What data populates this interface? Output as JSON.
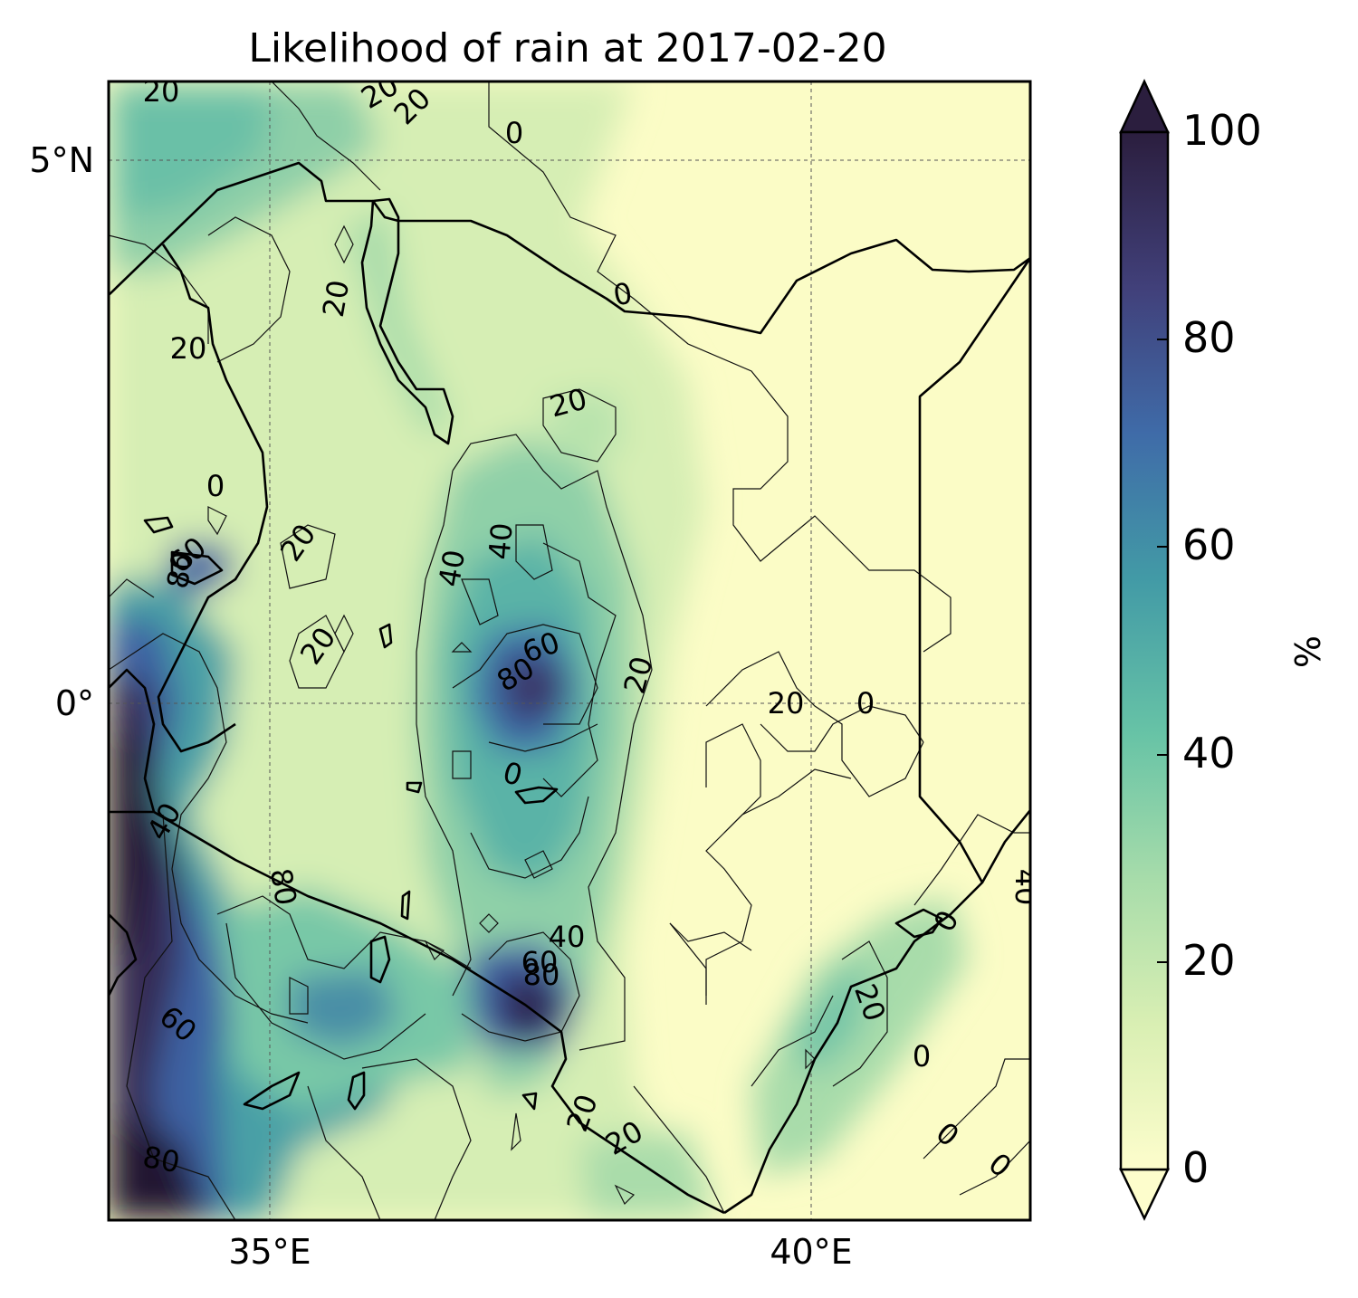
{
  "map": {
    "title": "Likelihood of rain at 2017-02-20",
    "longitude_ticks": [
      "35°E",
      "40°E"
    ],
    "latitude_ticks": [
      "5°N",
      "0°"
    ],
    "gridlines": true
  },
  "colorbar": {
    "label": "%",
    "ticks": [
      "0",
      "20",
      "40",
      "60",
      "80",
      "100"
    ],
    "range": [
      0,
      100
    ],
    "extend": "both",
    "colormap_stops": [
      "#fdfdcc",
      "#d9efb3",
      "#a7dcaa",
      "#67c3a6",
      "#429aa6",
      "#3f6ba8",
      "#41407a",
      "#2b1e3e"
    ]
  },
  "contour_labels": [
    "20",
    "20",
    "20",
    "0",
    "20",
    "20",
    "0",
    "20",
    "0",
    "20",
    "40",
    "40",
    "60",
    "80",
    "20",
    "20",
    "60",
    "80",
    "20",
    "0",
    "0",
    "40",
    "80",
    "40",
    "40",
    "60",
    "80",
    "0",
    "20",
    "0",
    "20",
    "20",
    "0",
    "0",
    "60",
    "80"
  ]
}
